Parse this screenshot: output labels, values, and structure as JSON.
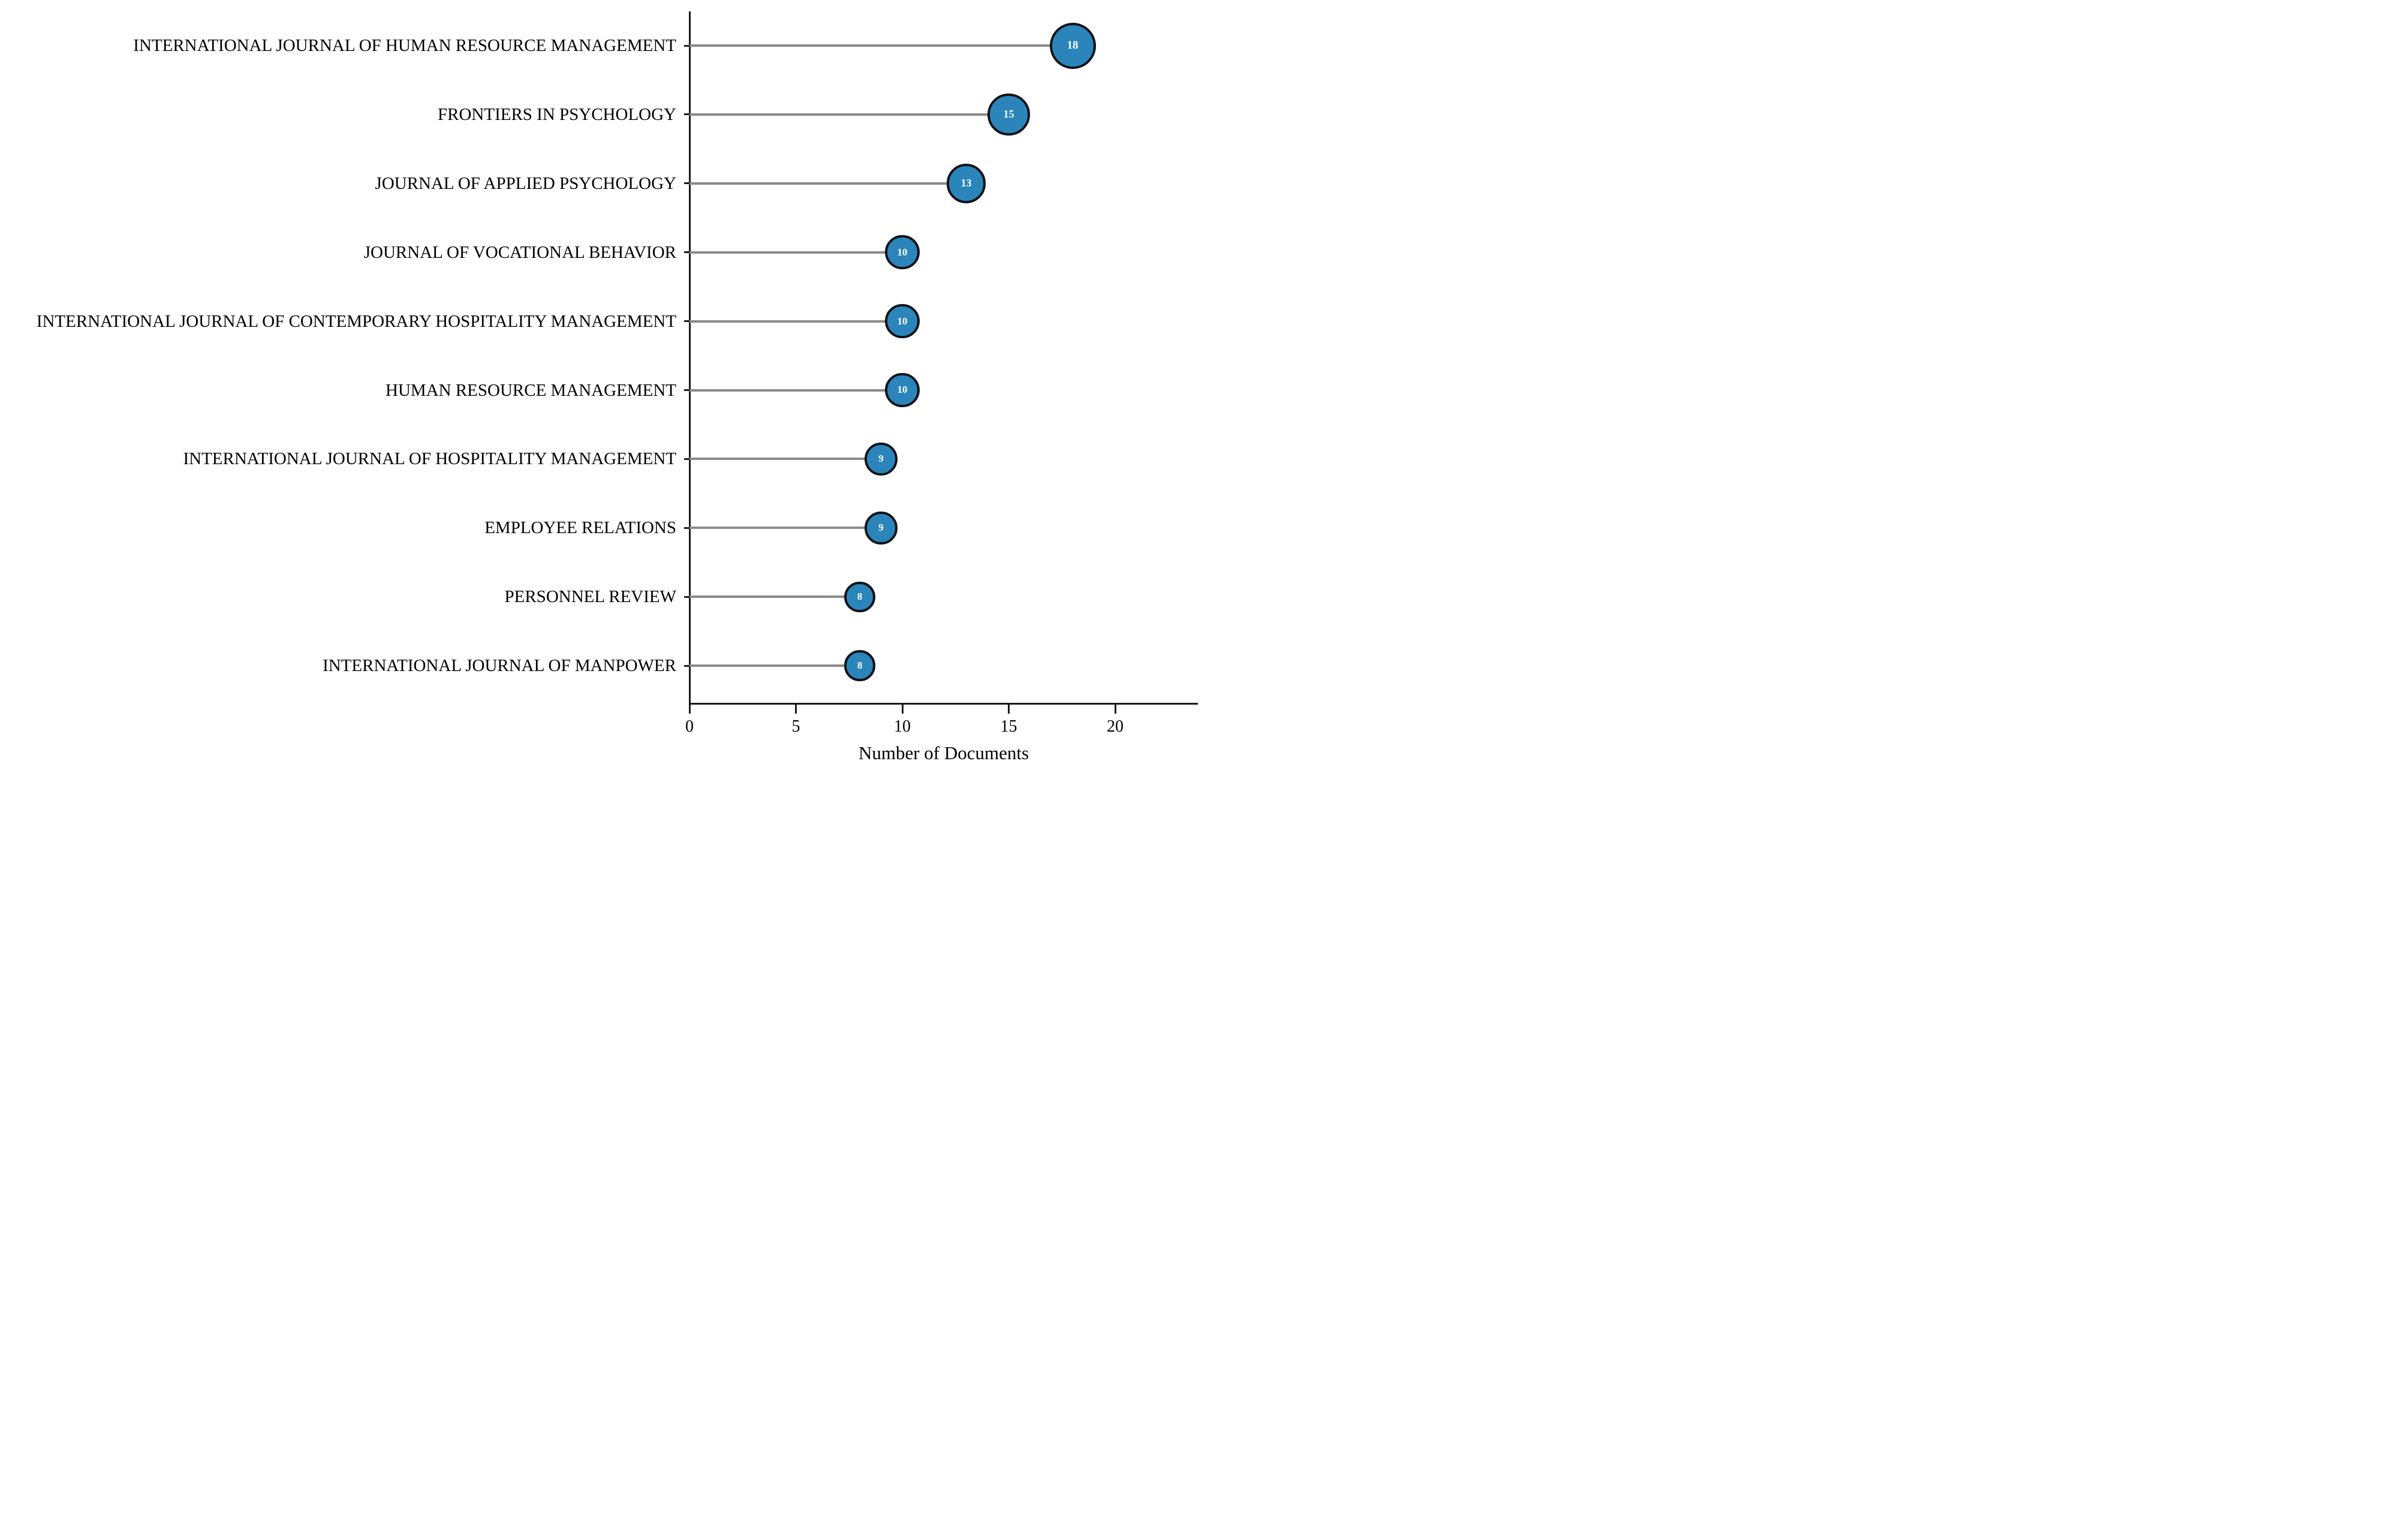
{
  "chart_data": {
    "type": "scatter",
    "variant": "lollipop",
    "categories": [
      "INTERNATIONAL JOURNAL OF HUMAN RESOURCE MANAGEMENT",
      "FRONTIERS IN PSYCHOLOGY",
      "JOURNAL OF APPLIED PSYCHOLOGY",
      "JOURNAL OF VOCATIONAL BEHAVIOR",
      "INTERNATIONAL JOURNAL OF CONTEMPORARY HOSPITALITY MANAGEMENT",
      "HUMAN RESOURCE MANAGEMENT",
      "INTERNATIONAL JOURNAL OF HOSPITALITY MANAGEMENT",
      "EMPLOYEE RELATIONS",
      "PERSONNEL REVIEW",
      "INTERNATIONAL JOURNAL OF MANPOWER"
    ],
    "values": [
      18,
      15,
      13,
      10,
      10,
      10,
      9,
      9,
      8,
      8
    ],
    "title": "",
    "xlabel": "Number of Documents",
    "ylabel": "",
    "xlim": [
      0,
      23.8
    ],
    "xticks": [
      0,
      5,
      10,
      15,
      20
    ],
    "grid": false,
    "legend": "none",
    "marker_size_mapping": "area proportional to value",
    "colors": {
      "bubble_fill": "#2b85ba",
      "bubble_stroke": "#101318",
      "bubble_text": "#ffffff",
      "stem": "#8a8a8a",
      "axis": "#1a1a1a",
      "label_text": "#000000"
    }
  }
}
